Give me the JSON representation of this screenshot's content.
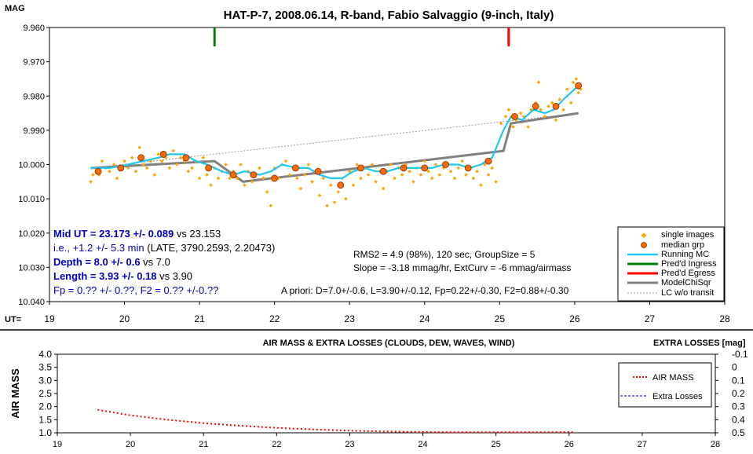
{
  "chart_data": [
    {
      "type": "scatter",
      "title": "HAT-P-7, 2008.06.14, R-band, Fabio Salvaggio (9-inch, Italy)",
      "ylabel": "MAG",
      "xlabel": "UT=",
      "xlim": [
        19,
        28
      ],
      "ylim": [
        9.96,
        10.04
      ],
      "y_inverted": true,
      "grid": false,
      "x_ticks": [
        "19",
        "20",
        "21",
        "22",
        "23",
        "24",
        "25",
        "26",
        "27",
        "28"
      ],
      "y_ticks": [
        "9.960",
        "9.970",
        "9.980",
        "9.990",
        "10.000",
        "10.010",
        "10.020",
        "10.030",
        "10.040"
      ],
      "legend_position": "bottom-right",
      "legend": [
        "single images",
        "median grp",
        "Running MC",
        "Pred'd Ingress",
        "Pred'd Egress",
        "ModelChiSqr",
        "LC w/o transit"
      ],
      "colors": {
        "single_images": "#ffa500",
        "median_grp": "#ff6a00",
        "running_mc": "#1ec8f0",
        "ingress": "#008000",
        "egress": "#ff0000",
        "model": "#808080",
        "no_transit": "#9a9a9a"
      },
      "annotations": {
        "mid_ut": "Mid UT = 23.173 +/- 0.089",
        "mid_ut_vs": " vs 23.153",
        "ie": "i.e., +1.2 +/- 5.3 min",
        "ie_rest": " (LATE, 3790.2593, 2.20473)",
        "depth": "Depth = 8.0 +/- 0.6",
        "depth_vs": " vs 7.0",
        "length": "Length = 3.93 +/- 0.18",
        "length_vs": " vs 3.90",
        "fp": "Fp = 0.?? +/- 0.??, F2 = 0.?? +/-0.??",
        "rms": "RMS2 = 4.9 (98%), 120 sec, GroupSize = 5",
        "slope": "Slope = -3.18 mmag/hr, ExtCurv = -6 mmag/airmass",
        "apriori": "A priori: D=7.0+/-0.6, L=3.90+/-0.12, Fp=0.22+/-0.30, F2=0.88+/-0.30"
      },
      "ingress_x": 21.2,
      "egress_x": 25.12,
      "single_images": [
        [
          19.55,
          10.005
        ],
        [
          19.58,
          10.003
        ],
        [
          19.62,
          10.001
        ],
        [
          19.66,
          10.003
        ],
        [
          19.7,
          9.999
        ],
        [
          19.75,
          10.001
        ],
        [
          19.8,
          10.002
        ],
        [
          19.86,
          10.0
        ],
        [
          19.9,
          10.004
        ],
        [
          19.95,
          10.001
        ],
        [
          20.0,
          9.999
        ],
        [
          20.05,
          10.001
        ],
        [
          20.1,
          9.998
        ],
        [
          20.15,
          10.002
        ],
        [
          20.2,
          9.995
        ],
        [
          20.25,
          10.0
        ],
        [
          20.3,
          10.001
        ],
        [
          20.35,
          9.999
        ],
        [
          20.4,
          10.003
        ],
        [
          20.45,
          9.997
        ],
        [
          20.5,
          9.999
        ],
        [
          20.55,
          9.998
        ],
        [
          20.6,
          10.001
        ],
        [
          20.65,
          9.996
        ],
        [
          20.7,
          10.0
        ],
        [
          20.75,
          9.998
        ],
        [
          20.8,
          9.999
        ],
        [
          20.85,
          10.002
        ],
        [
          20.9,
          10.001
        ],
        [
          20.95,
          9.999
        ],
        [
          21.0,
          10.004
        ],
        [
          21.05,
          9.998
        ],
        [
          21.1,
          10.003
        ],
        [
          21.15,
          10.006
        ],
        [
          21.2,
          10.001
        ],
        [
          21.25,
          10.004
        ],
        [
          21.3,
          10.002
        ],
        [
          21.35,
          10.0
        ],
        [
          21.4,
          10.004
        ],
        [
          21.45,
          10.002
        ],
        [
          21.5,
          10.004
        ],
        [
          21.55,
          10.0
        ],
        [
          21.6,
          10.006
        ],
        [
          21.65,
          10.002
        ],
        [
          21.7,
          10.005
        ],
        [
          21.75,
          10.003
        ],
        [
          21.8,
          10.001
        ],
        [
          21.85,
          10.004
        ],
        [
          21.9,
          10.008
        ],
        [
          21.95,
          10.012
        ],
        [
          22.0,
          10.001
        ],
        [
          22.05,
          10.004
        ],
        [
          22.1,
          10.0
        ],
        [
          22.15,
          9.999
        ],
        [
          22.2,
          10.003
        ],
        [
          22.25,
          10.001
        ],
        [
          22.3,
          10.004
        ],
        [
          22.35,
          10.007
        ],
        [
          22.4,
          10.003
        ],
        [
          22.45,
          10.0
        ],
        [
          22.5,
          10.005
        ],
        [
          22.55,
          10.002
        ],
        [
          22.6,
          10.009
        ],
        [
          22.65,
          10.004
        ],
        [
          22.7,
          10.012
        ],
        [
          22.75,
          10.006
        ],
        [
          22.8,
          10.011
        ],
        [
          22.85,
          10.008
        ],
        [
          22.9,
          10.004
        ],
        [
          22.95,
          10.01
        ],
        [
          23.0,
          10.002
        ],
        [
          23.05,
          10.006
        ],
        [
          23.1,
          10.0
        ],
        [
          23.15,
          10.004
        ],
        [
          23.2,
          10.001
        ],
        [
          23.25,
          10.003
        ],
        [
          23.3,
          10.0
        ],
        [
          23.35,
          10.005
        ],
        [
          23.4,
          10.002
        ],
        [
          23.45,
          10.007
        ],
        [
          23.5,
          10.002
        ],
        [
          23.55,
          10.0
        ],
        [
          23.6,
          10.004
        ],
        [
          23.65,
          10.001
        ],
        [
          23.7,
          10.003
        ],
        [
          23.75,
          10.0
        ],
        [
          23.8,
          10.002
        ],
        [
          23.85,
          10.005
        ],
        [
          23.9,
          10.001
        ],
        [
          23.95,
          10.003
        ],
        [
          24.0,
          9.999
        ],
        [
          24.05,
          10.002
        ],
        [
          24.1,
          10.004
        ],
        [
          24.15,
          10.0
        ],
        [
          24.2,
          10.003
        ],
        [
          24.25,
          10.001
        ],
        [
          24.3,
          10.0
        ],
        [
          24.35,
          10.002
        ],
        [
          24.4,
          10.004
        ],
        [
          24.45,
          10.001
        ],
        [
          24.5,
          9.999
        ],
        [
          24.55,
          10.003
        ],
        [
          24.6,
          10.001
        ],
        [
          24.65,
          10.004
        ],
        [
          24.7,
          10.002
        ],
        [
          24.75,
          10.006
        ],
        [
          24.8,
          10.0
        ],
        [
          24.85,
          10.003
        ],
        [
          24.9,
          10.001
        ],
        [
          24.95,
          10.005
        ],
        [
          25.02,
          9.988
        ],
        [
          25.08,
          9.986
        ],
        [
          25.12,
          9.984
        ],
        [
          25.18,
          9.989
        ],
        [
          25.22,
          9.987
        ],
        [
          25.28,
          9.985
        ],
        [
          25.32,
          9.986
        ],
        [
          25.38,
          9.989
        ],
        [
          25.42,
          9.984
        ],
        [
          25.48,
          9.982
        ],
        [
          25.52,
          9.976
        ],
        [
          25.55,
          9.984
        ],
        [
          25.6,
          9.986
        ],
        [
          25.65,
          9.983
        ],
        [
          25.7,
          9.982
        ],
        [
          25.75,
          9.987
        ],
        [
          25.8,
          9.981
        ],
        [
          25.85,
          9.984
        ],
        [
          25.9,
          9.978
        ],
        [
          25.95,
          9.982
        ],
        [
          25.98,
          9.976
        ],
        [
          26.02,
          9.975
        ],
        [
          26.05,
          9.979
        ],
        [
          26.08,
          9.978
        ]
      ],
      "median_grp": [
        [
          19.65,
          10.002
        ],
        [
          19.95,
          10.001
        ],
        [
          20.22,
          9.998
        ],
        [
          20.52,
          9.997
        ],
        [
          20.82,
          9.998
        ],
        [
          21.12,
          10.001
        ],
        [
          21.45,
          10.003
        ],
        [
          21.72,
          10.003
        ],
        [
          22.0,
          10.004
        ],
        [
          22.28,
          10.001
        ],
        [
          22.58,
          10.002
        ],
        [
          22.88,
          10.006
        ],
        [
          23.15,
          10.001
        ],
        [
          23.45,
          10.002
        ],
        [
          23.72,
          10.001
        ],
        [
          24.0,
          10.001
        ],
        [
          24.28,
          10.0
        ],
        [
          24.58,
          10.001
        ],
        [
          24.85,
          9.999
        ],
        [
          25.2,
          9.986
        ],
        [
          25.48,
          9.983
        ],
        [
          25.75,
          9.983
        ],
        [
          26.05,
          9.977
        ]
      ],
      "running_mc": [
        [
          19.55,
          10.001
        ],
        [
          19.8,
          10.001
        ],
        [
          20.05,
          10.0
        ],
        [
          20.25,
          9.999
        ],
        [
          20.45,
          9.998
        ],
        [
          20.6,
          9.997
        ],
        [
          20.8,
          9.997
        ],
        [
          20.95,
          9.999
        ],
        [
          21.1,
          10.0
        ],
        [
          21.3,
          10.002
        ],
        [
          21.45,
          10.003
        ],
        [
          21.6,
          10.002
        ],
        [
          21.8,
          10.003
        ],
        [
          21.95,
          10.002
        ],
        [
          22.1,
          10.0
        ],
        [
          22.3,
          10.001
        ],
        [
          22.45,
          10.001
        ],
        [
          22.6,
          10.003
        ],
        [
          22.75,
          10.004
        ],
        [
          22.9,
          10.004
        ],
        [
          23.05,
          10.002
        ],
        [
          23.2,
          10.001
        ],
        [
          23.35,
          10.002
        ],
        [
          23.5,
          10.002
        ],
        [
          23.65,
          10.001
        ],
        [
          23.8,
          10.001
        ],
        [
          23.95,
          10.001
        ],
        [
          24.1,
          10.001
        ],
        [
          24.25,
          10.0
        ],
        [
          24.45,
          10.0
        ],
        [
          24.6,
          10.001
        ],
        [
          24.75,
          10.0
        ],
        [
          24.9,
          9.998
        ],
        [
          25.05,
          9.99
        ],
        [
          25.15,
          9.986
        ],
        [
          25.3,
          9.987
        ],
        [
          25.45,
          9.984
        ],
        [
          25.6,
          9.985
        ],
        [
          25.72,
          9.984
        ],
        [
          25.85,
          9.981
        ],
        [
          25.95,
          9.979
        ],
        [
          26.05,
          9.977
        ]
      ],
      "model": [
        [
          19.55,
          10.001
        ],
        [
          21.2,
          9.999
        ],
        [
          21.58,
          10.005
        ],
        [
          25.05,
          9.996
        ],
        [
          25.15,
          9.988
        ],
        [
          26.05,
          9.985
        ]
      ],
      "no_transit": [
        [
          19.55,
          10.001
        ],
        [
          26.05,
          9.985
        ]
      ]
    },
    {
      "type": "line",
      "title": "AIR MASS & EXTRA LOSSES (CLOUDS, DEW, WAVES, WIND)",
      "ylabel": "AIR MASS",
      "y2label": "EXTRA LOSSES [mag]",
      "xlim": [
        19,
        28
      ],
      "ylim": [
        1.0,
        4.0
      ],
      "y2lim": [
        0.5,
        -0.1
      ],
      "x_ticks": [
        "19",
        "20",
        "21",
        "22",
        "23",
        "24",
        "25",
        "26",
        "27",
        "28"
      ],
      "y_ticks": [
        "1.0",
        "1.5",
        "2.0",
        "2.5",
        "3.0",
        "3.5",
        "4.0"
      ],
      "y2_ticks": [
        "0.5",
        "0.4",
        "0.3",
        "0.2",
        "0.1",
        "0",
        "-0.1"
      ],
      "legend_position": "top-right",
      "legend": [
        "AIR MASS",
        "Extra Losses"
      ],
      "colors": {
        "air_mass": "#ff0000",
        "extra_losses": "#0000a0"
      },
      "air_mass": [
        [
          19.55,
          1.88
        ],
        [
          20.0,
          1.67
        ],
        [
          20.5,
          1.5
        ],
        [
          21.0,
          1.37
        ],
        [
          21.5,
          1.27
        ],
        [
          22.0,
          1.19
        ],
        [
          22.5,
          1.13
        ],
        [
          23.0,
          1.08
        ],
        [
          23.5,
          1.05
        ],
        [
          24.0,
          1.03
        ],
        [
          24.5,
          1.02
        ],
        [
          25.0,
          1.02
        ],
        [
          25.5,
          1.02
        ],
        [
          26.05,
          1.03
        ]
      ]
    }
  ]
}
